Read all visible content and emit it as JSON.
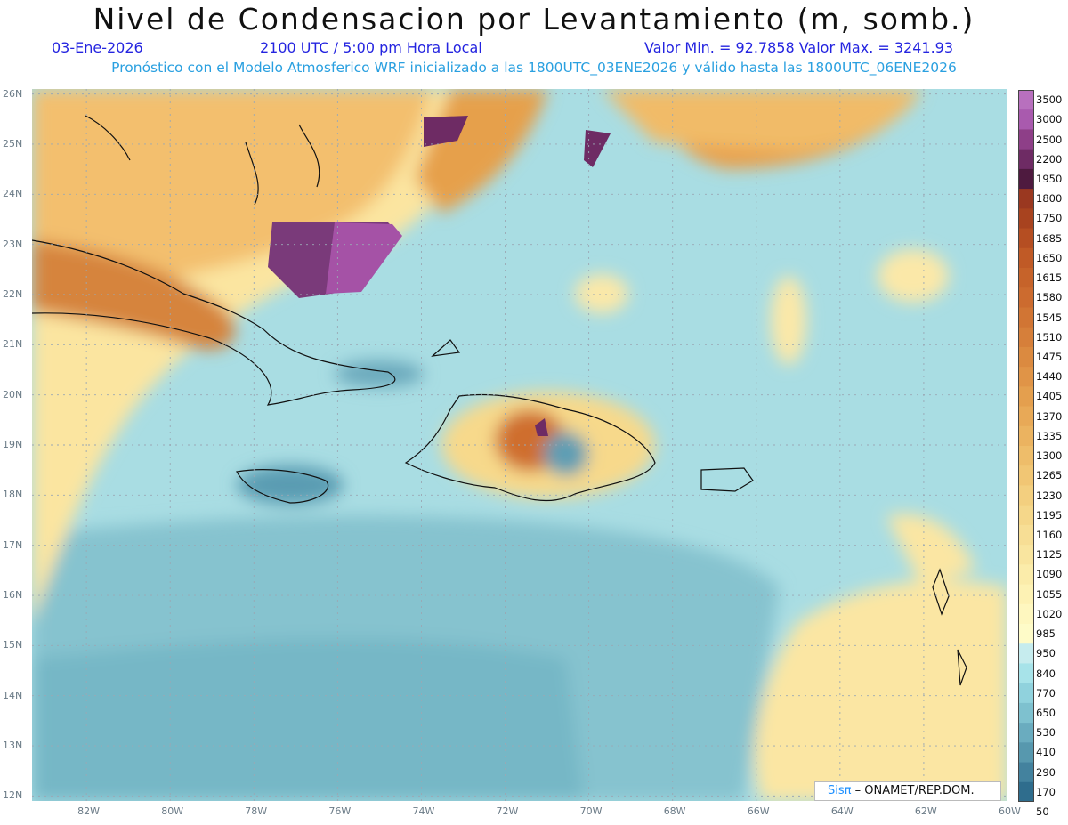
{
  "title": "Nivel de Condensacion por Levantamiento (m, somb.)",
  "date": "03-Ene-2026",
  "time": "2100 UTC / 5:00 pm Hora Local",
  "range": "Valor Min. = 92.7858   Valor Max. = 3241.93",
  "model": "Pronóstico con el Modelo Atmosferico WRF inicializado a las 1800UTC_03ENE2026 y válido hasta las  1800UTC_06ENE2026",
  "credit": {
    "brand": "Sisπ",
    "org": "– ONAMET/REP.DOM."
  },
  "map": {
    "lon_range": [
      -83.3,
      -60
    ],
    "lat_range": [
      11.9,
      26.1
    ],
    "lat_ticks": [
      "26N",
      "25N",
      "24N",
      "23N",
      "22N",
      "21N",
      "20N",
      "19N",
      "18N",
      "17N",
      "16N",
      "15N",
      "14N",
      "13N",
      "12N"
    ],
    "lon_ticks": [
      "82W",
      "80W",
      "78W",
      "76W",
      "74W",
      "72W",
      "70W",
      "68W",
      "66W",
      "64W",
      "62W",
      "60W"
    ]
  },
  "colorbar": {
    "labels": [
      "3500",
      "3000",
      "2500",
      "2200",
      "1950",
      "1800",
      "1750",
      "1685",
      "1650",
      "1615",
      "1580",
      "1545",
      "1510",
      "1475",
      "1440",
      "1405",
      "1370",
      "1335",
      "1300",
      "1265",
      "1230",
      "1195",
      "1160",
      "1125",
      "1090",
      "1055",
      "1020",
      "985",
      "950",
      "840",
      "770",
      "650",
      "530",
      "410",
      "290",
      "170",
      "50"
    ],
    "colors": [
      "#b870be",
      "#a95aae",
      "#8e3f88",
      "#6e2b64",
      "#4e1a3f",
      "#9a3820",
      "#a8431f",
      "#b54e22",
      "#c05a26",
      "#c6632a",
      "#cc6b2f",
      "#d17534",
      "#d67f3a",
      "#db8a40",
      "#e09447",
      "#e49f4e",
      "#e8a957",
      "#ebb360",
      "#eebd6a",
      "#f1c674",
      "#f3cf7f",
      "#f5d78a",
      "#f7de95",
      "#f9e59f",
      "#fbecaa",
      "#fdf2b4",
      "#fef7bf",
      "#fefbc8",
      "#c6ecee",
      "#a7e3e9",
      "#90d2dd",
      "#7ec1cf",
      "#6aacbf",
      "#5798ae",
      "#43829e",
      "#2f6d8d"
    ]
  }
}
